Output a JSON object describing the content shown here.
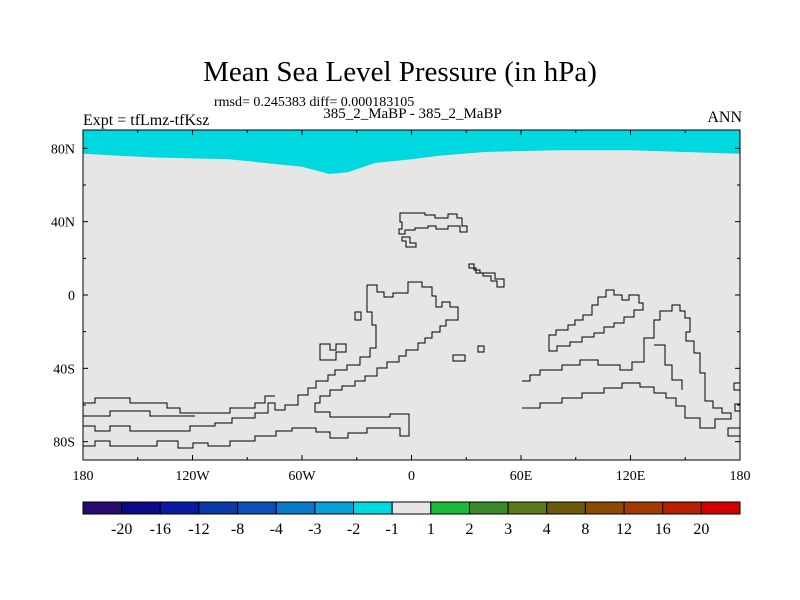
{
  "chart_data": {
    "type": "map",
    "title": "Mean Sea Level Pressure (in hPa)",
    "stats_text": "rmsd= 0.245383 diff= 0.000183105",
    "case_text": "385_2_MaBP - 385_2_MaBP",
    "left_label": "Expt = tfLmz-tfKsz",
    "right_label": "ANN",
    "x_range": [
      -180,
      180
    ],
    "y_range": [
      -90,
      90
    ],
    "x_ticks": [
      {
        "value": -180,
        "label": "180"
      },
      {
        "value": -120,
        "label": "120W"
      },
      {
        "value": -60,
        "label": "60W"
      },
      {
        "value": 0,
        "label": "0"
      },
      {
        "value": 60,
        "label": "60E"
      },
      {
        "value": 120,
        "label": "120E"
      },
      {
        "value": 180,
        "label": "180"
      }
    ],
    "y_ticks": [
      {
        "value": 80,
        "label": "80N"
      },
      {
        "value": 40,
        "label": "40N"
      },
      {
        "value": 0,
        "label": "0"
      },
      {
        "value": -40,
        "label": "40S"
      },
      {
        "value": -80,
        "label": "80S"
      }
    ],
    "background_fill": "#e6e6e6",
    "field_regions": [
      {
        "level": "-2 to -1",
        "color": "#00d8e0",
        "boundary_lonlat": [
          [
            -180,
            90
          ],
          [
            180,
            90
          ],
          [
            180,
            77
          ],
          [
            150,
            78
          ],
          [
            120,
            79
          ],
          [
            80,
            79
          ],
          [
            40,
            78
          ],
          [
            15,
            76
          ],
          [
            0,
            74
          ],
          [
            -20,
            72
          ],
          [
            -35,
            67
          ],
          [
            -45,
            66
          ],
          [
            -60,
            70
          ],
          [
            -100,
            74
          ],
          [
            -140,
            75
          ],
          [
            -160,
            76
          ],
          [
            -180,
            77
          ]
        ]
      }
    ],
    "colorbar": {
      "colors": [
        "#2a0a6e",
        "#0a0a8a",
        "#0a1aa0",
        "#0a3aaa",
        "#0a50b8",
        "#0a78c8",
        "#08a0d8",
        "#00d8e0",
        "#e6e6e6",
        "#1abb3a",
        "#3a8a2a",
        "#5a7a1a",
        "#6a5a0a",
        "#8a4a00",
        "#a03a00",
        "#b81e00",
        "#d00000"
      ],
      "labels": [
        "-20",
        "-16",
        "-12",
        "-8",
        "-4",
        "-3",
        "-2",
        "-1",
        "1",
        "2",
        "3",
        "4",
        "8",
        "12",
        "16",
        "20"
      ]
    }
  }
}
